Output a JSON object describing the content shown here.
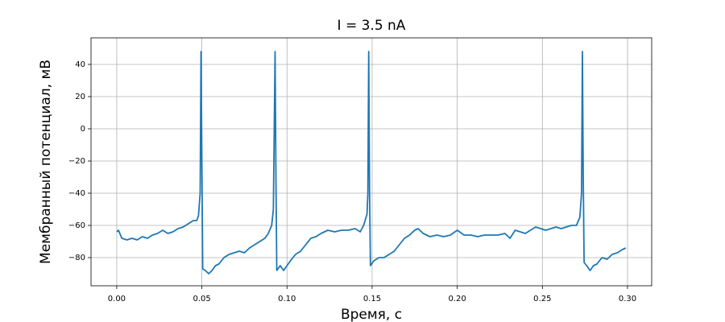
{
  "chart_data": {
    "type": "line",
    "title": "I = 3.5 nA",
    "xlabel": "Время, с",
    "ylabel": "Мембранный потенциал, мВ",
    "color": "#1f77b4",
    "grid": true,
    "xlim": [
      -0.0151,
      0.3142
    ],
    "ylim": [
      -97.5,
      56.5
    ],
    "xticks": [
      {
        "value": 0,
        "label": "0.00"
      },
      {
        "value": 0.05,
        "label": "0.05"
      },
      {
        "value": 0.1,
        "label": "0.10"
      },
      {
        "value": 0.15,
        "label": "0.15"
      },
      {
        "value": 0.2,
        "label": "0.20"
      },
      {
        "value": 0.25,
        "label": "0.25"
      },
      {
        "value": 0.3,
        "label": "0.30"
      }
    ],
    "yticks": [
      {
        "value": -80,
        "label": "−80"
      },
      {
        "value": -60,
        "label": "−60"
      },
      {
        "value": -40,
        "label": "−40"
      },
      {
        "value": -20,
        "label": "−20"
      },
      0,
      20,
      40
    ],
    "x": [
      0.0,
      0.001,
      0.003,
      0.006,
      0.009,
      0.012,
      0.015,
      0.018,
      0.021,
      0.024,
      0.027,
      0.03,
      0.033,
      0.036,
      0.039,
      0.042,
      0.045,
      0.047,
      0.048,
      0.049,
      0.0495,
      0.05,
      0.0505,
      0.052,
      0.054,
      0.056,
      0.058,
      0.06,
      0.063,
      0.066,
      0.069,
      0.072,
      0.075,
      0.078,
      0.081,
      0.084,
      0.087,
      0.089,
      0.091,
      0.092,
      0.093,
      0.0935,
      0.094,
      0.096,
      0.098,
      0.1,
      0.102,
      0.105,
      0.108,
      0.111,
      0.114,
      0.117,
      0.12,
      0.124,
      0.128,
      0.132,
      0.136,
      0.14,
      0.143,
      0.145,
      0.147,
      0.1475,
      0.148,
      0.1485,
      0.149,
      0.151,
      0.154,
      0.157,
      0.16,
      0.163,
      0.166,
      0.169,
      0.172,
      0.175,
      0.177,
      0.18,
      0.184,
      0.188,
      0.192,
      0.196,
      0.2,
      0.204,
      0.208,
      0.212,
      0.216,
      0.22,
      0.224,
      0.228,
      0.231,
      0.234,
      0.237,
      0.24,
      0.243,
      0.246,
      0.249,
      0.252,
      0.255,
      0.258,
      0.261,
      0.264,
      0.267,
      0.27,
      0.272,
      0.273,
      0.2735,
      0.274,
      0.2745,
      0.276,
      0.278,
      0.28,
      0.282,
      0.285,
      0.288,
      0.291,
      0.294,
      0.297,
      0.299
    ],
    "values": [
      -64,
      -63,
      -68,
      -69,
      -68,
      -69,
      -67,
      -68,
      -66,
      -65,
      -63,
      -65,
      -64,
      -62,
      -61,
      -59,
      -57,
      -57,
      -54,
      -40,
      48,
      -20,
      -87,
      -88,
      -90,
      -88,
      -85,
      -84,
      -80,
      -78,
      -77,
      -76,
      -77,
      -74,
      -72,
      -70,
      -68,
      -65,
      -60,
      -50,
      48,
      -30,
      -88,
      -85,
      -88,
      -85,
      -82,
      -78,
      -76,
      -72,
      -68,
      -67,
      -65,
      -63,
      -64,
      -63,
      -63,
      -62,
      -64,
      -60,
      -53,
      -40,
      48,
      -40,
      -85,
      -82,
      -80,
      -80,
      -78,
      -76,
      -72,
      -68,
      -66,
      -63,
      -62,
      -65,
      -67,
      -66,
      -67,
      -66,
      -63,
      -66,
      -66,
      -67,
      -66,
      -66,
      -66,
      -65,
      -68,
      -63,
      -64,
      -65,
      -63,
      -61,
      -62,
      -63,
      -62,
      -61,
      -62,
      -61,
      -60,
      -60,
      -55,
      -40,
      48,
      -30,
      -83,
      -85,
      -88,
      -85,
      -84,
      -80,
      -81,
      -78,
      -77,
      -75,
      -74
    ]
  }
}
